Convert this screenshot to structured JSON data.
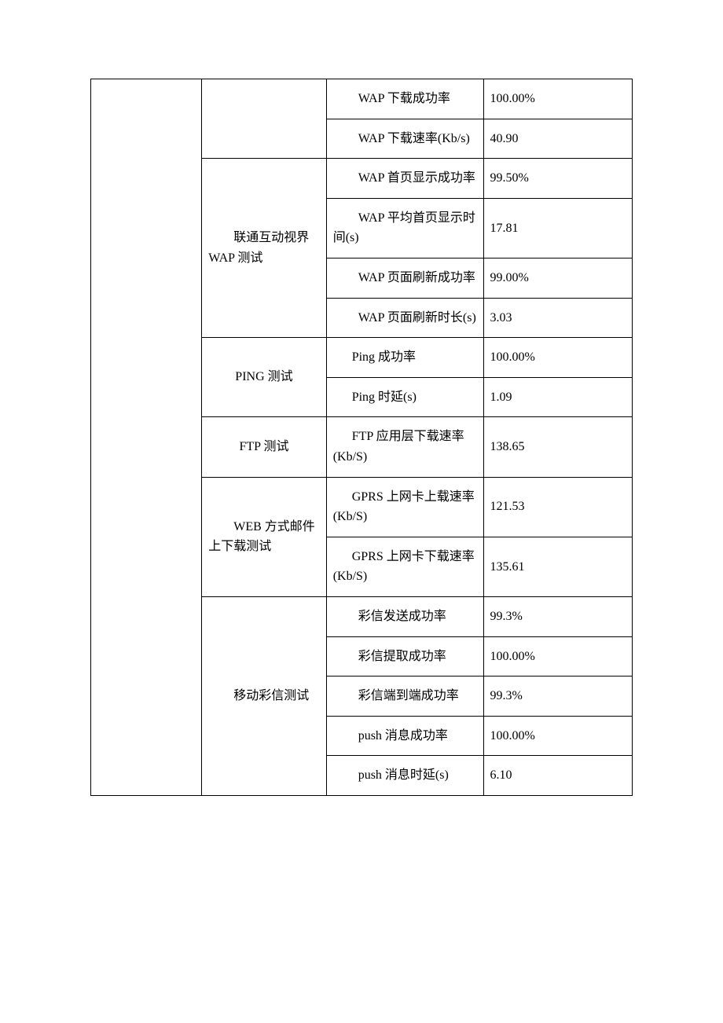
{
  "rows": [
    {
      "col3_text": "WAP 下载成功率",
      "col4_text": "100.00%"
    },
    {
      "col3_text": "WAP 下载速率(Kb/s)",
      "col4_text": "40.90"
    },
    {
      "col2_label": "联通互动视界 WAP 测试",
      "col3_text": "WAP 首页显示成功率",
      "col4_text": "99.50%"
    },
    {
      "col3_text": "WAP 平均首页显示时间(s)",
      "col4_text": "17.81"
    },
    {
      "col3_text": "WAP 页面刷新成功率",
      "col4_text": "99.00%"
    },
    {
      "col3_text": "WAP 页面刷新时长(s)",
      "col4_text": "3.03"
    },
    {
      "col2_label": "PING 测试",
      "col3_text": "Ping 成功率",
      "col4_text": "100.00%"
    },
    {
      "col3_text": "Ping 时延(s)",
      "col4_text": "1.09"
    },
    {
      "col2_label": "FTP 测试",
      "col3_text": "FTP 应用层下载速率(Kb/S)",
      "col4_text": "138.65"
    },
    {
      "col2_label": "WEB 方式邮件上下载测试",
      "col3_text": "GPRS 上网卡上载速率(Kb/S)",
      "col4_text": "121.53"
    },
    {
      "col3_text": "GPRS 上网卡下载速率(Kb/S)",
      "col4_text": "135.61"
    },
    {
      "col2_label": "移动彩信测试",
      "col3_text": "彩信发送成功率",
      "col4_text": "99.3%"
    },
    {
      "col3_text": "彩信提取成功率",
      "col4_text": "100.00%"
    },
    {
      "col3_text": "彩信端到端成功率",
      "col4_text": "99.3%"
    },
    {
      "col3_text": "push 消息成功率",
      "col4_text": "100.00%"
    },
    {
      "col3_text": "push 消息时延(s)",
      "col4_text": "6.10"
    }
  ],
  "table_style": {
    "border_color": "#000000",
    "background_color": "#ffffff",
    "text_color": "#000000",
    "font_size": 16,
    "font_family": "SimSun",
    "col_widths": [
      "20.5%",
      "23%",
      "29%",
      "27.5%"
    ]
  }
}
